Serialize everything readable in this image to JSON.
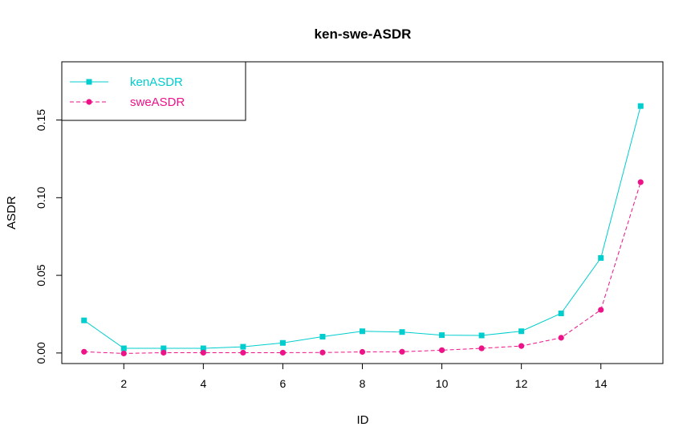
{
  "chart_data": {
    "type": "line",
    "title": "ken-swe-ASDR",
    "xlabel": "ID",
    "ylabel": "ASDR",
    "x": [
      1,
      2,
      3,
      4,
      5,
      6,
      7,
      8,
      9,
      10,
      11,
      12,
      13,
      14,
      15
    ],
    "xlim": [
      0.44,
      15.56
    ],
    "ylim": [
      -0.0068,
      0.1875
    ],
    "xticks": [
      2,
      4,
      6,
      8,
      10,
      12,
      14
    ],
    "yticks": [
      0.0,
      0.05,
      0.1,
      0.15
    ],
    "xtick_labels": [
      "2",
      "4",
      "6",
      "8",
      "10",
      "12",
      "14"
    ],
    "ytick_labels": [
      "0.00",
      "0.05",
      "0.10",
      "0.15"
    ],
    "grid": false,
    "legend_position": "top-left",
    "series": [
      {
        "name": "kenASDR",
        "color": "#00CDCD",
        "marker": "square",
        "line": "solid",
        "values": [
          0.021,
          0.003,
          0.003,
          0.003,
          0.004,
          0.0065,
          0.0105,
          0.014,
          0.0135,
          0.0115,
          0.0113,
          0.014,
          0.0255,
          0.0612,
          0.159
        ]
      },
      {
        "name": "sweASDR",
        "color": "#EE1289",
        "marker": "circle",
        "line": "dashed",
        "values": [
          0.0008,
          -0.0003,
          0.0002,
          0.0002,
          0.0002,
          0.0002,
          0.0003,
          0.0007,
          0.0008,
          0.0018,
          0.003,
          0.0045,
          0.0098,
          0.0278,
          0.11
        ]
      }
    ]
  }
}
